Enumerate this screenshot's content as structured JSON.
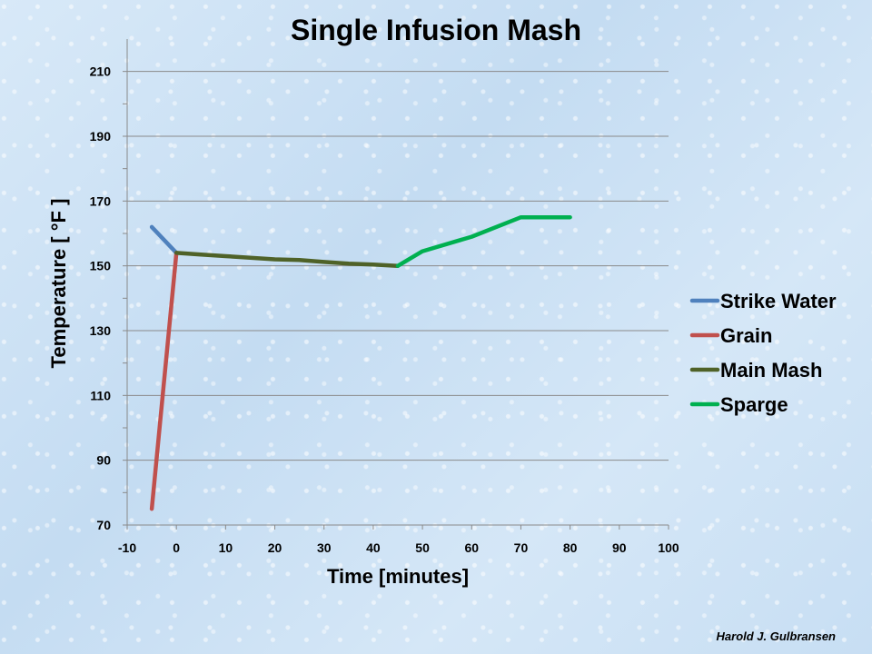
{
  "chart_data": {
    "type": "line",
    "title": "Single Infusion Mash",
    "xlabel": "Time [minutes]",
    "ylabel": "Temperature  [ °F ]",
    "xlim": [
      -10,
      100
    ],
    "ylim": [
      70,
      220
    ],
    "x_ticks": [
      -10,
      0,
      10,
      20,
      30,
      40,
      50,
      60,
      70,
      80,
      90,
      100
    ],
    "y_ticks": [
      70,
      90,
      110,
      130,
      150,
      170,
      190,
      210
    ],
    "grid": "horizontal",
    "legend_position": "right",
    "series": [
      {
        "name": "Strike Water",
        "color": "#4f81bd",
        "points": [
          [
            -5,
            162
          ],
          [
            0,
            154
          ]
        ]
      },
      {
        "name": "Grain",
        "color": "#c0504d",
        "points": [
          [
            -5,
            75
          ],
          [
            0,
            154
          ]
        ]
      },
      {
        "name": "Main Mash",
        "color": "#4f6228",
        "points": [
          [
            0,
            154
          ],
          [
            5,
            153.5
          ],
          [
            10,
            153
          ],
          [
            20,
            152
          ],
          [
            25,
            151.8
          ],
          [
            30,
            151.2
          ],
          [
            35,
            150.7
          ],
          [
            40,
            150.4
          ],
          [
            45,
            150
          ]
        ]
      },
      {
        "name": "Sparge",
        "color": "#00b050",
        "points": [
          [
            45,
            150
          ],
          [
            50,
            154.5
          ],
          [
            60,
            159
          ],
          [
            70,
            165
          ],
          [
            80,
            165
          ]
        ]
      }
    ]
  },
  "credit": "Harold J. Gulbransen"
}
